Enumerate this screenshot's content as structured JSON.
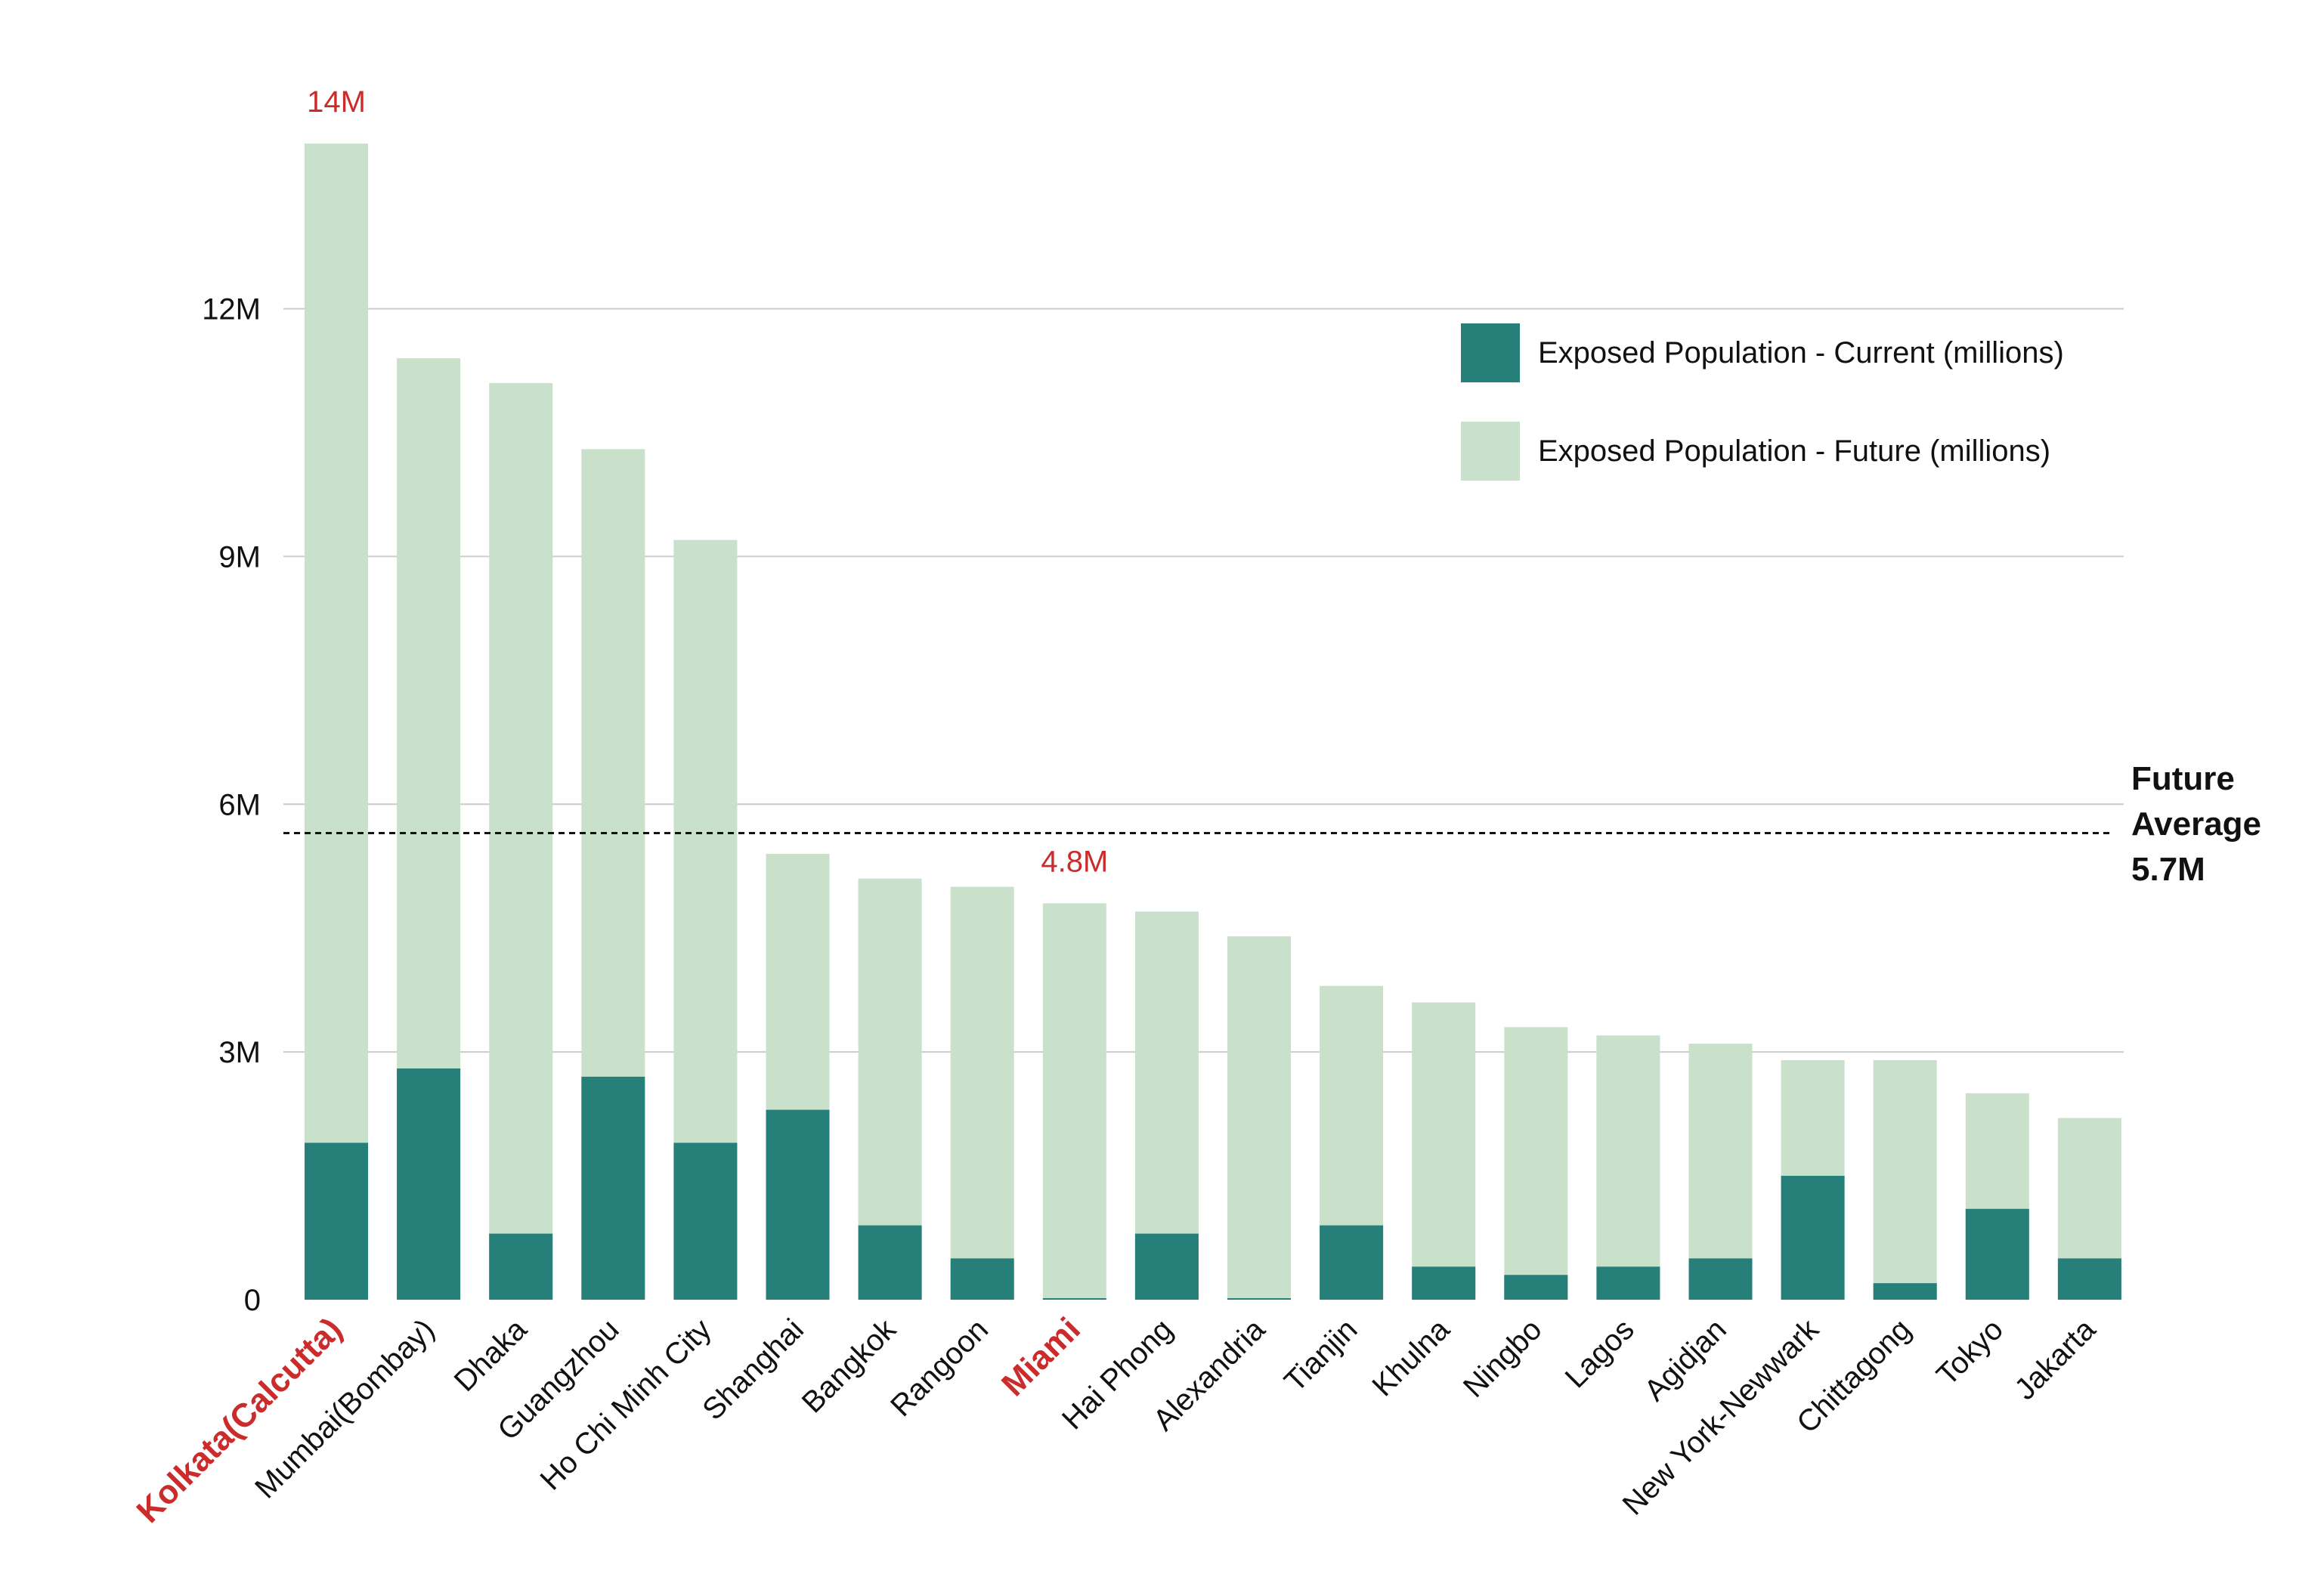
{
  "chart_data": {
    "type": "bar",
    "stacked": "overlay",
    "title": "",
    "xlabel": "",
    "ylabel": "",
    "ylim": [
      0,
      14
    ],
    "y_ticks": [
      {
        "value": 0,
        "label": "0"
      },
      {
        "value": 3,
        "label": "3M"
      },
      {
        "value": 6,
        "label": "6M"
      },
      {
        "value": 9,
        "label": "9M"
      },
      {
        "value": 12,
        "label": "12M"
      }
    ],
    "grid": true,
    "legend_position": "top-right",
    "categories": [
      "Kolkata(Calcutta)",
      "Mumbai(Bombay)",
      "Dhaka",
      "Guangzhou",
      "Ho Chi Minh City",
      "Shanghai",
      "Bangkok",
      "Rangoon",
      "Miami",
      "Hai Phong",
      "Alexandria",
      "Tianjin",
      "Khulna",
      "Ningbo",
      "Lagos",
      "Agidjan",
      "New York-Newwark",
      "Chittagong",
      "Tokyo",
      "Jakarta"
    ],
    "highlighted_categories": [
      "Kolkata(Calcutta)",
      "Miami"
    ],
    "series": [
      {
        "name": "Exposed Population - Future (millions)",
        "color": "#c9e0ca",
        "values": [
          14.0,
          11.4,
          11.1,
          10.3,
          9.2,
          5.4,
          5.1,
          5.0,
          4.8,
          4.7,
          4.4,
          3.8,
          3.6,
          3.3,
          3.2,
          3.1,
          2.9,
          2.9,
          2.5,
          2.2
        ]
      },
      {
        "name": "Exposed Population - Current (millions)",
        "color": "#277f7a",
        "values": [
          1.9,
          2.8,
          0.8,
          2.7,
          1.9,
          2.3,
          0.9,
          0.5,
          0.0,
          0.8,
          0.0,
          0.9,
          0.4,
          0.3,
          0.4,
          0.5,
          1.5,
          0.2,
          1.1,
          0.5
        ]
      }
    ],
    "annotations": [
      {
        "category": "Kolkata(Calcutta)",
        "value": 14.0,
        "text": "14M"
      },
      {
        "category": "Miami",
        "value": 4.8,
        "text": "4.8M"
      }
    ],
    "reference_line": {
      "value": 5.65,
      "label_lines": [
        "Future",
        "Average",
        "5.7M"
      ]
    },
    "highlight_color": "#cc2b2b",
    "gridline_color": "#cccccc"
  }
}
